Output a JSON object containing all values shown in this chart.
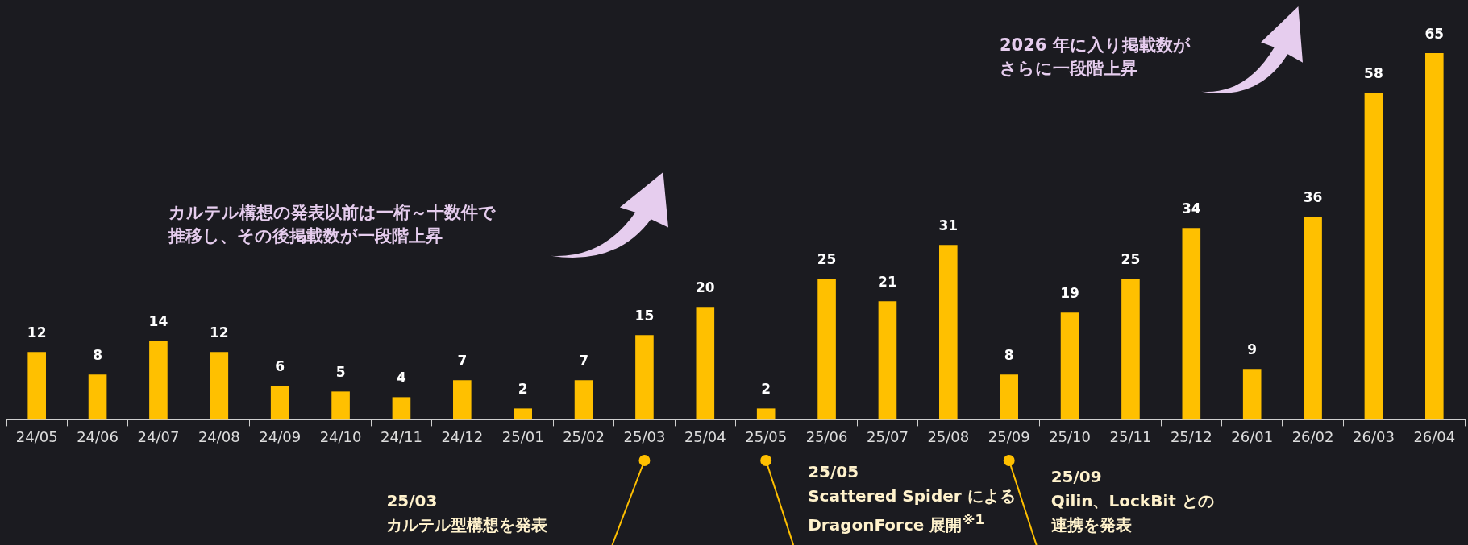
{
  "chart_data": {
    "type": "bar",
    "categories": [
      "24/05",
      "24/06",
      "24/07",
      "24/08",
      "24/09",
      "24/10",
      "24/11",
      "24/12",
      "25/01",
      "25/02",
      "25/03",
      "25/04",
      "25/05",
      "25/06",
      "25/07",
      "25/08",
      "25/09",
      "25/10",
      "25/11",
      "25/12",
      "26/01",
      "26/02",
      "26/03",
      "26/04"
    ],
    "values": [
      12,
      8,
      14,
      12,
      6,
      5,
      4,
      7,
      2,
      7,
      15,
      20,
      2,
      25,
      21,
      31,
      8,
      19,
      25,
      34,
      9,
      36,
      58,
      65
    ],
    "color": "#ffc000",
    "data_labels": true,
    "tick_labels": "x",
    "legend": false,
    "annotations": [
      "カルテル構想の発表以前は一桁～十数件で推移し、その後掲載数が一段階上昇",
      "2026 年に入り掲載数がさらに一段階上昇",
      "25/03\nカルテル型構想を発表",
      "25/05\nScattered Spider による\nDragonForce 展開$^{※1}$",
      "25/09\nQilin、LockBit との連携を発表"
    ]
  }
}
